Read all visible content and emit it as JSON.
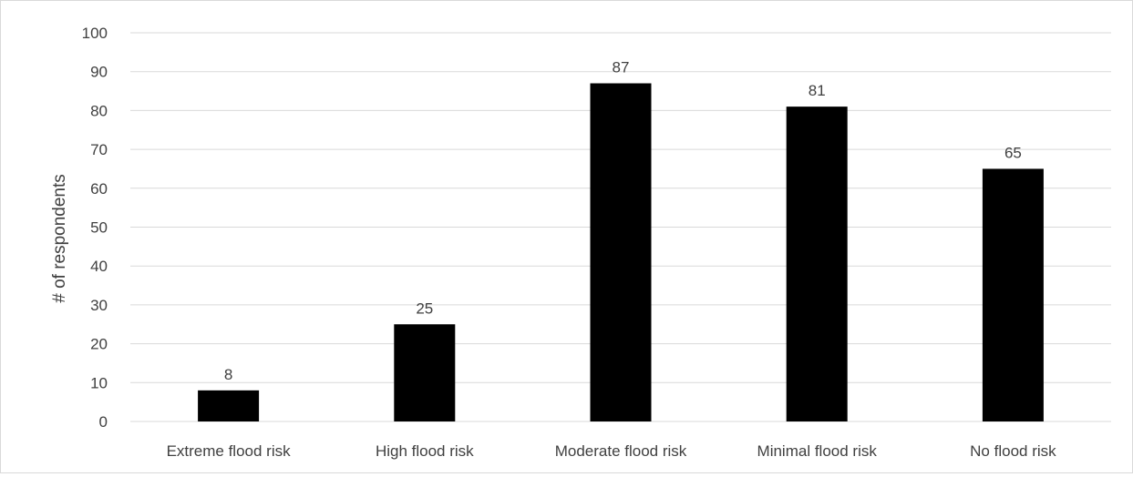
{
  "chart_data": {
    "type": "bar",
    "title": "",
    "xlabel": "",
    "ylabel": "# of respondents",
    "categories": [
      "Extreme flood risk",
      "High flood risk",
      "Moderate flood risk",
      "Minimal flood risk",
      "No flood risk"
    ],
    "values": [
      8,
      25,
      87,
      81,
      65
    ],
    "data_labels": [
      "8",
      "25",
      "87",
      "81",
      "65"
    ],
    "ylim": [
      0,
      100
    ],
    "yticks": [
      0,
      10,
      20,
      30,
      40,
      50,
      60,
      70,
      80,
      90,
      100
    ],
    "ytick_labels": [
      "0",
      "10",
      "20",
      "30",
      "40",
      "50",
      "60",
      "70",
      "80",
      "90",
      "100"
    ],
    "grid": true,
    "legend": "none",
    "colors": {
      "bar": "#000000",
      "grid": "#d9d9d9",
      "text": "#404040"
    }
  }
}
